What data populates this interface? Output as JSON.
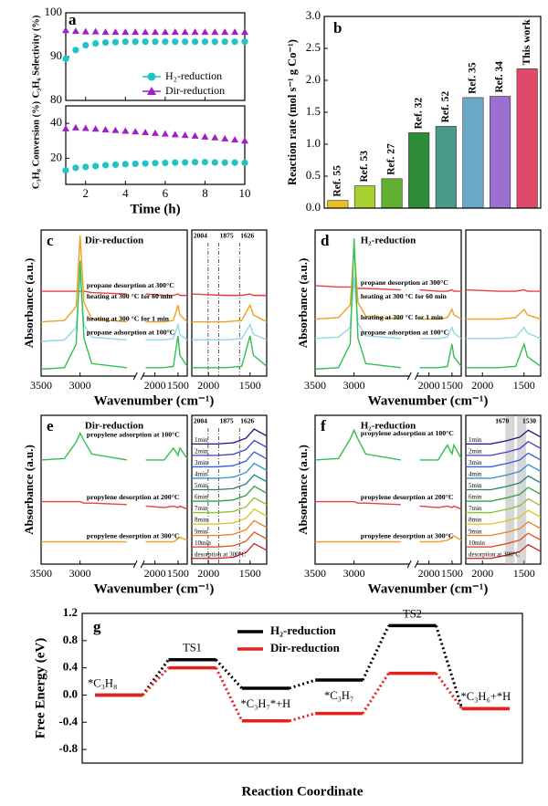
{
  "chart_data": [
    {
      "type": "line",
      "label": "a",
      "xlabel": "Time (h)",
      "x": [
        1,
        1.5,
        2,
        2.5,
        3,
        3.5,
        4,
        4.5,
        5,
        5.5,
        6,
        6.5,
        7,
        7.5,
        8,
        8.5,
        9,
        9.5,
        10
      ],
      "xlim": [
        1,
        10
      ],
      "xticks": [
        2,
        4,
        6,
        8,
        10
      ],
      "panels": [
        {
          "ylabel": "C₃H₆ Selectivity (%)",
          "ylim": [
            80,
            100
          ],
          "yticks": [
            80,
            90,
            100
          ],
          "series": [
            {
              "name": "H₂-reduction",
              "color": "#21c4c4",
              "marker": "circle",
              "values": [
                89.5,
                91.5,
                92.6,
                93,
                93.2,
                93.3,
                93.4,
                93.4,
                93.4,
                93.4,
                93.4,
                93.4,
                93.4,
                93.4,
                93.4,
                93.4,
                93.4,
                93.4,
                93.4
              ]
            },
            {
              "name": "Dir-reduction",
              "color": "#a01fc8",
              "marker": "triangle",
              "values": [
                96,
                95.8,
                95.7,
                95.7,
                95.6,
                95.6,
                95.6,
                95.6,
                95.6,
                95.6,
                95.6,
                95.6,
                95.6,
                95.6,
                95.6,
                95.6,
                95.6,
                95.6,
                95.6
              ]
            }
          ]
        },
        {
          "ylabel": "C₃H₈ Conversion (%)",
          "ylim": [
            5,
            50
          ],
          "yticks": [
            20,
            40
          ],
          "series": [
            {
              "color": "#21c4c4",
              "marker": "circle",
              "values": [
                13,
                14.5,
                15,
                15.5,
                16,
                16.3,
                16.6,
                16.8,
                17,
                17.2,
                17.3,
                17.5,
                17.6,
                17.8,
                17.8,
                17.6,
                17.5,
                17.5,
                17.4
              ]
            },
            {
              "color": "#a01fc8",
              "marker": "triangle",
              "values": [
                37,
                37.5,
                37.2,
                36.8,
                36.4,
                36,
                35.6,
                35.2,
                34.8,
                34.4,
                34,
                33.6,
                33.2,
                32.8,
                32.3,
                31.8,
                31.2,
                30.6,
                30
              ]
            }
          ]
        }
      ]
    },
    {
      "type": "bar",
      "label": "b",
      "ylabel": "Reaction rate (mol s⁻¹ g Co⁻¹)",
      "categories": [
        "Ref. 55",
        "Ref. 53",
        "Ref. 27",
        "Ref. 32",
        "Ref. 52",
        "Ref. 35",
        "Ref. 34",
        "This work"
      ],
      "values": [
        0.12,
        0.35,
        0.46,
        1.18,
        1.28,
        1.73,
        1.75,
        2.18
      ],
      "colors": [
        "#e8c020",
        "#a8d030",
        "#62b032",
        "#2e8b3a",
        "#4a9a8a",
        "#6aa8c8",
        "#9a70d0",
        "#e04a6a"
      ],
      "highlight_index": 7,
      "highlight_color": "#e0203a",
      "ylim": [
        0,
        3
      ],
      "yticks": [
        {
          "value": 0,
          "label": "0.0"
        },
        0.5,
        {
          "value": 1,
          "label": "1.0"
        },
        1.5,
        {
          "value": 2,
          "label": "2.0"
        },
        2.5,
        {
          "value": 3,
          "label": "3.0"
        }
      ]
    },
    {
      "type": "spectra",
      "label": "c",
      "title": "Dir-reduction",
      "xlabel": "Wavenumber (cm⁻¹)",
      "ylabel": "Absorbance (a.u.)",
      "x": [
        3500,
        3200,
        3050,
        3000,
        2950,
        2850,
        2400,
        2200,
        1800,
        1600,
        1500,
        1460,
        1300
      ],
      "xlim": [
        3500,
        1300
      ],
      "axis_break": [
        2300,
        2250
      ],
      "xticks": [
        3500,
        3000,
        2000,
        1500
      ],
      "ylim": [
        -0.5,
        10
      ],
      "series": [
        {
          "name": "propane desorption at 300°C",
          "color": "#e8403a",
          "values": [
            5.6,
            5.6,
            5.6,
            5.6,
            5.6,
            5.5,
            5.4,
            5.4,
            5.3,
            5.3,
            5.4,
            5.3,
            5.3
          ]
        },
        {
          "name": "heating at 300 °C for 60 min",
          "color": "#f0a020",
          "values": [
            3.4,
            3.5,
            4.5,
            9.6,
            4.8,
            3.6,
            3.4,
            3.4,
            3.4,
            3.5,
            4.6,
            3.9,
            3.4
          ]
        },
        {
          "name": "heating at 300 °C for 1 min",
          "color": "#90d8e8",
          "values": [
            2,
            2.1,
            3,
            6.8,
            3.2,
            2.3,
            2.1,
            2.1,
            2.1,
            2.2,
            3.2,
            2.5,
            2.1
          ]
        },
        {
          "name": "propane adsorption at 100°C",
          "color": "#30c050",
          "values": [
            0,
            0.1,
            1.8,
            7.8,
            2.2,
            0.4,
            0.1,
            0.1,
            0.1,
            0.2,
            2.4,
            1,
            0.2
          ]
        }
      ],
      "inset_xlim": [
        2200,
        1300
      ],
      "inset_xticks": [
        2000,
        1500
      ],
      "reference_lines": [
        2004,
        1875,
        1626
      ],
      "reference_style": "dashed"
    },
    {
      "type": "spectra",
      "label": "d",
      "title": "H₂-reduction",
      "xlabel": "Wavenumber (cm⁻¹)",
      "ylabel": "Absorbance (a.u.)",
      "x": [
        3500,
        3200,
        3050,
        3000,
        2950,
        2850,
        2400,
        2200,
        1800,
        1600,
        1500,
        1460,
        1300
      ],
      "xlim": [
        3500,
        1300
      ],
      "axis_break": [
        2300,
        2250
      ],
      "xticks": [
        3500,
        3000,
        2000,
        1500
      ],
      "ylim": [
        -0.5,
        10
      ],
      "series": [
        {
          "name": "propane desorption at 300°C",
          "color": "#e8403a",
          "values": [
            6,
            5.9,
            5.9,
            5.9,
            5.8,
            5.8,
            5.7,
            5.7,
            5.6,
            5.6,
            5.7,
            5.6,
            5.6
          ]
        },
        {
          "name": "heating at 300 °C for 60 min",
          "color": "#f0a020",
          "values": [
            3.6,
            3.7,
            4.6,
            8.8,
            4.8,
            3.8,
            3.6,
            3.6,
            3.6,
            3.7,
            4.3,
            3.9,
            3.6
          ]
        },
        {
          "name": "heating at 300 °C for 1 min",
          "color": "#90d8e8",
          "values": [
            2.2,
            2.3,
            3,
            6.6,
            3.3,
            2.4,
            2.2,
            2.2,
            2.2,
            2.3,
            3,
            2.6,
            2.2
          ]
        },
        {
          "name": "propane adsorption at 100°C",
          "color": "#30c050",
          "values": [
            0,
            0.1,
            1.8,
            9.4,
            2.2,
            0.4,
            0.1,
            0.1,
            0.1,
            0.2,
            1.8,
            0.9,
            0.2
          ]
        }
      ],
      "inset_xlim": [
        2200,
        1300
      ],
      "inset_xticks": [
        2000,
        1500
      ]
    },
    {
      "type": "spectra",
      "label": "e",
      "title": "Dir-reduction",
      "xlabel": "Wavenumber (cm⁻¹)",
      "ylabel": "Absorbance (a.u.)",
      "x": [
        3500,
        3200,
        3050,
        3000,
        2950,
        2850,
        2400,
        2200,
        1800,
        1600,
        1500,
        1460,
        1300
      ],
      "xlim": [
        3500,
        1300
      ],
      "axis_break": [
        2300,
        2250
      ],
      "xticks": [
        3500,
        3000,
        2000,
        1500
      ],
      "ylim": [
        0,
        10
      ],
      "series": [
        {
          "name": "propylene adsorption at 100°C",
          "color": "#30c050",
          "values": [
            7,
            7.1,
            8.2,
            8.8,
            8.3,
            7.4,
            7,
            7,
            7,
            7.8,
            7.3,
            7.8,
            7.1
          ]
        },
        {
          "name": "propylene desorption at 200°C",
          "color": "#e8403a",
          "values": [
            4.2,
            4.2,
            4.2,
            4.2,
            4.1,
            4.1,
            4,
            3.9,
            3.8,
            3.9,
            3.8,
            3.9,
            3.7
          ]
        },
        {
          "name": "propylene desorption at 300°C",
          "color": "#f0a020",
          "values": [
            1.5,
            1.5,
            1.5,
            1.5,
            1.5,
            1.5,
            1.5,
            1.5,
            1.5,
            1.5,
            1.7,
            1.8,
            1.6
          ]
        }
      ],
      "inset_xlim": [
        2200,
        1300
      ],
      "inset_xticks": [
        2000,
        1500
      ],
      "inset_x": [
        2200,
        1900,
        1700,
        1550,
        1450,
        1300
      ],
      "inset_ylim": [
        -0.5,
        12.5
      ],
      "inset_series": [
        {
          "name": "1min",
          "color": "#2b0a7a",
          "values": [
            10,
            10,
            10.1,
            10.5,
            11.3,
            10.7
          ]
        },
        {
          "name": "2min",
          "color": "#4040c0",
          "values": [
            9,
            9,
            9.1,
            9.5,
            10.3,
            9.7
          ]
        },
        {
          "name": "3min",
          "color": "#3060e0",
          "values": [
            8,
            8,
            8.1,
            8.5,
            9.3,
            8.7
          ]
        },
        {
          "name": "4min",
          "color": "#3090d0",
          "values": [
            7,
            7,
            7.1,
            7.5,
            8.3,
            7.7
          ]
        },
        {
          "name": "5min",
          "color": "#208080",
          "values": [
            6,
            6,
            6.1,
            6.5,
            7.3,
            6.7
          ]
        },
        {
          "name": "6min",
          "color": "#30a040",
          "values": [
            5,
            5,
            5.1,
            5.5,
            6.3,
            5.7
          ]
        },
        {
          "name": "7min",
          "color": "#90c030",
          "values": [
            4,
            4,
            4.1,
            4.5,
            5.3,
            4.7
          ]
        },
        {
          "name": "8min",
          "color": "#e0c020",
          "values": [
            3,
            3,
            3.1,
            3.5,
            4.3,
            3.7
          ]
        },
        {
          "name": "9min",
          "color": "#f08020",
          "values": [
            2,
            2,
            2.1,
            2.5,
            3.3,
            2.7
          ]
        },
        {
          "name": "10min",
          "color": "#e05020",
          "values": [
            1,
            1,
            1.1,
            1.5,
            2.3,
            1.7
          ]
        },
        {
          "name": "desorption at 300°C",
          "color": "#d02020",
          "values": [
            0,
            0,
            0.1,
            0.5,
            1.3,
            0.7
          ]
        }
      ],
      "reference_lines": [
        2004,
        1875,
        1626
      ],
      "reference_style": "dashed"
    },
    {
      "type": "spectra",
      "label": "f",
      "title": "H₂-reduction",
      "xlabel": "Wavenumber (cm⁻¹)",
      "ylabel": "Absorbance (a.u.)",
      "x": [
        3500,
        3200,
        3050,
        3000,
        2950,
        2850,
        2400,
        2200,
        1800,
        1600,
        1500,
        1460,
        1300
      ],
      "xlim": [
        3500,
        1300
      ],
      "axis_break": [
        2300,
        2250
      ],
      "xticks": [
        3500,
        3000,
        2000,
        1500
      ],
      "ylim": [
        0,
        10
      ],
      "series": [
        {
          "name": "propylene adsorption at 100°C",
          "color": "#30c050",
          "values": [
            7,
            7.1,
            8.4,
            9,
            8.4,
            7.4,
            7,
            7,
            7,
            8,
            7.4,
            8,
            7.1
          ]
        },
        {
          "name": "propylene desorption at 200°C",
          "color": "#e8403a",
          "values": [
            4.2,
            4.2,
            4.2,
            4.2,
            4.1,
            4.1,
            4,
            3.9,
            3.8,
            3.9,
            3.8,
            3.9,
            3.7
          ]
        },
        {
          "name": "propylene desorption at 300°C",
          "color": "#f0a020",
          "values": [
            1.5,
            1.5,
            1.5,
            1.5,
            1.5,
            1.5,
            1.5,
            1.5,
            1.5,
            1.6,
            1.8,
            1.9,
            1.6
          ]
        }
      ],
      "inset_xlim": [
        2200,
        1300
      ],
      "inset_xticks": [
        2000,
        1500
      ],
      "inset_x": [
        2200,
        1900,
        1700,
        1550,
        1450,
        1300
      ],
      "inset_ylim": [
        -0.5,
        12.5
      ],
      "inset_series": [
        {
          "name": "1min",
          "color": "#2b0a7a",
          "values": [
            10,
            10,
            10.3,
            10.6,
            11.2,
            10.6
          ]
        },
        {
          "name": "2min",
          "color": "#4040c0",
          "values": [
            9,
            9,
            9.3,
            9.6,
            10.2,
            9.6
          ]
        },
        {
          "name": "3min",
          "color": "#3060e0",
          "values": [
            8,
            8,
            8.3,
            8.6,
            9.2,
            8.6
          ]
        },
        {
          "name": "4min",
          "color": "#3090d0",
          "values": [
            7,
            7,
            7.3,
            7.6,
            8.2,
            7.6
          ]
        },
        {
          "name": "5min",
          "color": "#208080",
          "values": [
            6,
            6,
            6.3,
            6.6,
            7.2,
            6.6
          ]
        },
        {
          "name": "6min",
          "color": "#30a040",
          "values": [
            5,
            5,
            5.3,
            5.6,
            6.2,
            5.6
          ]
        },
        {
          "name": "7min",
          "color": "#90c030",
          "values": [
            4,
            4,
            4.3,
            4.6,
            5.2,
            4.6
          ]
        },
        {
          "name": "8min",
          "color": "#e0c020",
          "values": [
            3,
            3,
            3.3,
            3.6,
            4.2,
            3.6
          ]
        },
        {
          "name": "9min",
          "color": "#f08020",
          "values": [
            2,
            2,
            2.3,
            2.6,
            3.2,
            2.6
          ]
        },
        {
          "name": "10min",
          "color": "#e05020",
          "values": [
            1,
            1,
            1.3,
            1.6,
            2.2,
            1.6
          ]
        },
        {
          "name": "desorption at 300°C",
          "color": "#d02020",
          "values": [
            0,
            0,
            0.3,
            0.6,
            1.2,
            0.6
          ]
        }
      ],
      "reference_lines": [
        1670,
        1530
      ],
      "reference_style": "band"
    },
    {
      "type": "energy",
      "label": "g",
      "ylabel": "Free Energy (eV)",
      "xlabel": "Reaction Coordinate",
      "categories": [
        "*C₃H₈",
        "TS1",
        "*C₃H₇*+H",
        "*C₃H₇",
        "TS2",
        "*C₃H₆+*H"
      ],
      "ylim": [
        -1.0,
        1.2
      ],
      "yticks": [
        -0.8,
        -0.4,
        {
          "value": 0,
          "label": "0.0"
        },
        0.4,
        0.8,
        1.2
      ],
      "series": [
        {
          "name": "H₂-reduction",
          "color": "#000000",
          "values": [
            0,
            0.52,
            0.1,
            0.22,
            1.02,
            -0.2
          ]
        },
        {
          "name": "Dir-reduction",
          "color": "#e8201c",
          "values": [
            0,
            0.4,
            -0.38,
            -0.27,
            0.32,
            -0.2
          ]
        }
      ]
    }
  ]
}
